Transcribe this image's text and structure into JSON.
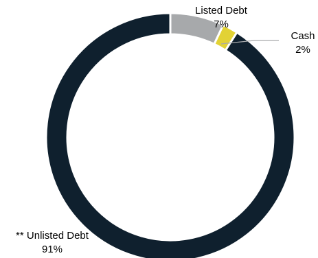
{
  "chart_data": {
    "type": "pie",
    "style": "donut",
    "title": "",
    "slices": [
      {
        "label": "Listed Debt",
        "value": 7,
        "display": "7%",
        "color": "#a7a9ab"
      },
      {
        "label": "Cash",
        "value": 2,
        "display": "2%",
        "color": "#e2d235"
      },
      {
        "label": "** Unlisted Debt",
        "value": 91,
        "display": "91%",
        "color": "#0f202e"
      }
    ]
  }
}
